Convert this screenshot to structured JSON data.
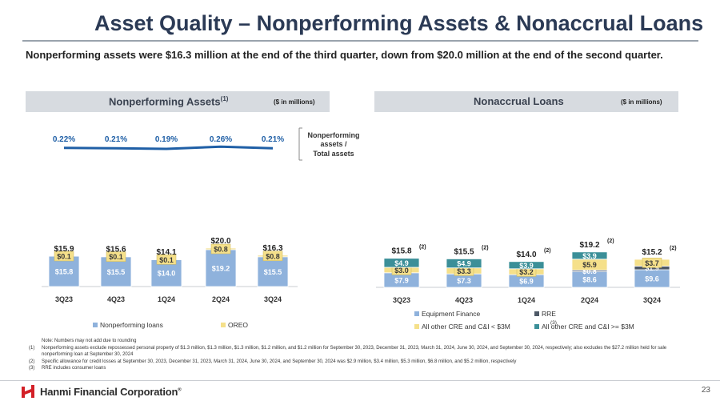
{
  "title": "Asset Quality – Nonperforming Assets & Nonaccrual Loans",
  "subtitle": "Nonperforming assets were $16.3 million at the end of the third quarter, down from $20.0 million at the end of the second quarter.",
  "left_panel": {
    "title": "Nonperforming Assets",
    "title_sup": "(1)",
    "unit": "($ in millions)"
  },
  "right_panel": {
    "title": "Nonaccrual Loans",
    "unit": "($ in millions)"
  },
  "ratio_label": [
    "Nonperforming",
    "assets /",
    "Total assets"
  ],
  "chart_data": [
    {
      "type": "line",
      "title": "Nonperforming assets / Total assets",
      "categories": [
        "3Q23",
        "4Q23",
        "1Q24",
        "2Q24",
        "3Q24"
      ],
      "values": [
        0.22,
        0.21,
        0.19,
        0.26,
        0.21
      ],
      "labels": [
        "0.22%",
        "0.21%",
        "0.19%",
        "0.26%",
        "0.21%"
      ],
      "color": "#1f5fa6"
    },
    {
      "type": "bar",
      "stacked": true,
      "title": "Nonperforming Assets",
      "categories": [
        "3Q23",
        "4Q23",
        "1Q24",
        "2Q24",
        "3Q24"
      ],
      "series": [
        {
          "name": "Nonperforming loans",
          "values": [
            15.8,
            15.5,
            14.0,
            19.2,
            15.5
          ],
          "labels": [
            "$15.8",
            "$15.5",
            "$14.0",
            "$19.2",
            "$15.5"
          ],
          "color": "#8fb2dc"
        },
        {
          "name": "OREO",
          "values": [
            0.1,
            0.1,
            0.1,
            0.8,
            0.8
          ],
          "labels": [
            "$0.1",
            "$0.1",
            "$0.1",
            "$0.8",
            "$0.8"
          ],
          "color": "#f5e08a"
        }
      ],
      "totals": [
        "$15.9",
        "$15.6",
        "$14.1",
        "$20.0",
        "$16.3"
      ],
      "ylim": [
        0,
        24
      ],
      "legend": "bottom"
    },
    {
      "type": "bar",
      "stacked": true,
      "title": "Nonaccrual Loans",
      "categories": [
        "3Q23",
        "4Q23",
        "1Q24",
        "2Q24",
        "3Q24"
      ],
      "series": [
        {
          "name": "Equipment Finance",
          "values": [
            7.9,
            7.3,
            6.9,
            8.6,
            9.6
          ],
          "labels": [
            "$7.9",
            "$7.3",
            "$6.9",
            "$8.6",
            "$9.6"
          ],
          "color": "#8fb2dc"
        },
        {
          "name": "RRE",
          "name_sup": "(3)",
          "values": [
            0,
            0,
            0,
            0.8,
            1.9
          ],
          "labels": [
            "",
            "",
            "",
            "$0.8",
            "$1.9"
          ],
          "color": "#4d5866"
        },
        {
          "name": "All other CRE and C&I < $3M",
          "values": [
            3.0,
            3.3,
            3.2,
            5.9,
            3.7
          ],
          "labels": [
            "$3.0",
            "$3.3",
            "$3.2",
            "$5.9",
            "$3.7"
          ],
          "color": "#f5e08a"
        },
        {
          "name": "All other CRE and C&I >= $3M",
          "values": [
            4.9,
            4.9,
            3.9,
            3.9,
            0
          ],
          "labels": [
            "$4.9",
            "$4.9",
            "$3.9",
            "$3.9",
            ""
          ],
          "color": "#3b8f98"
        }
      ],
      "totals": [
        "$15.8",
        "$15.5",
        "$14.0",
        "$19.2",
        "$15.2"
      ],
      "total_sup": "(2)",
      "ylim": [
        0,
        24
      ],
      "legend": "bottom"
    }
  ],
  "notes": [
    {
      "num": "",
      "text": "Note: Numbers may not add due to rounding"
    },
    {
      "num": "(1)",
      "text": "Nonperforming assets exclude repossessed personal property of $1.3 million, $1.3 million, $1.3 million, $1.2 million, and $1.2 million for September 30, 2023, December 31, 2023, March 31, 2024, June 30, 2024, and September 30, 2024, respectively; also excludes the $27.2 million held for sale nonperforming loan at September 30, 2024"
    },
    {
      "num": "(2)",
      "text": "Specific allowance for credit losses at September 30, 2023, December 31, 2023, March 31, 2024, June 30, 2024, and September 30, 2024 was $2.9 million, $3.4 million, $5.3 million, $6.8 million, and $5.2 million, respectively"
    },
    {
      "num": "(3)",
      "text": "RRE includes consumer loans"
    }
  ],
  "logo_text": "Hanmi Financial Corporation",
  "logo_tm": "®",
  "page_number": "23"
}
